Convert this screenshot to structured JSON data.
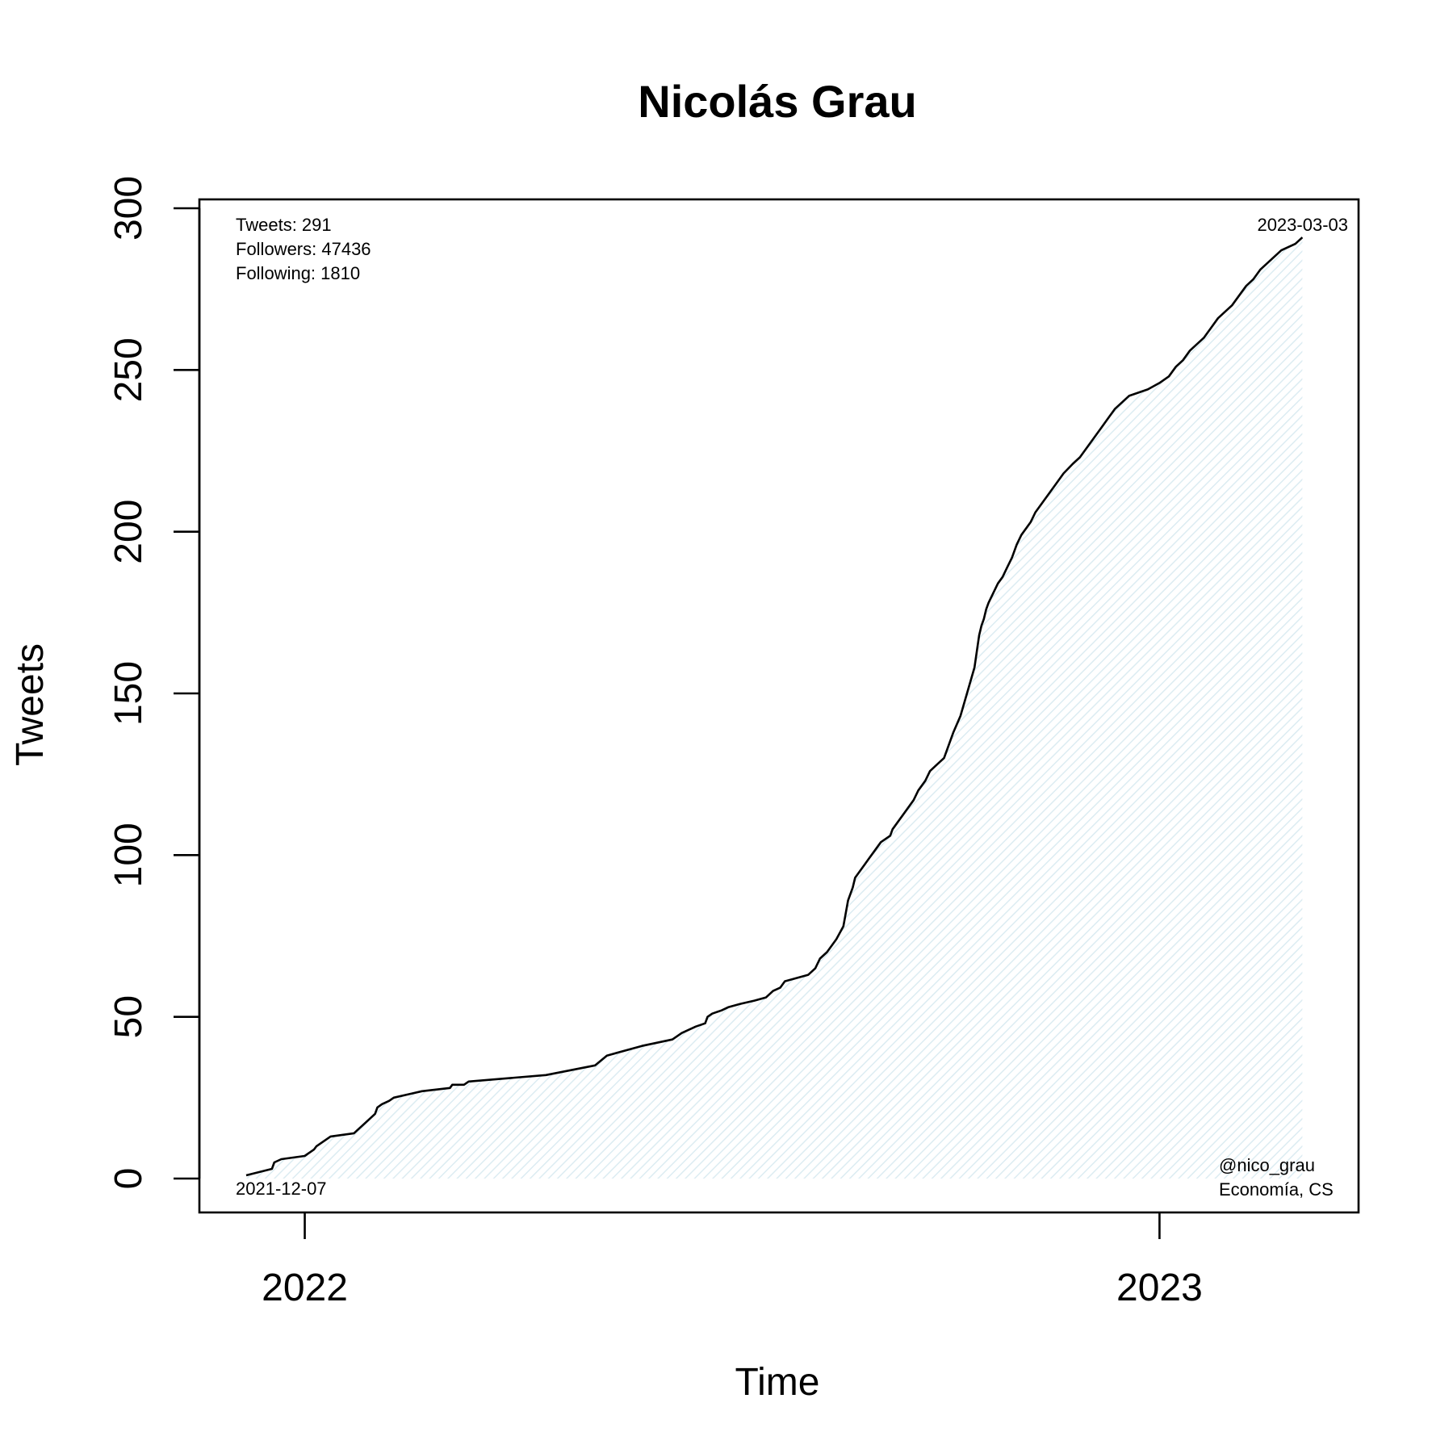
{
  "chart_data": {
    "type": "area",
    "title": "Nicolás Grau",
    "xlabel": "Time",
    "ylabel": "Tweets",
    "ylim": [
      0,
      300
    ],
    "yticks": [
      0,
      50,
      100,
      150,
      200,
      250,
      300
    ],
    "xlim": [
      "2021-11-17",
      "2023-03-27"
    ],
    "xticks": [
      {
        "date": "2022-01-01",
        "label": "2022"
      },
      {
        "date": "2023-01-01",
        "label": "2023"
      }
    ],
    "grid": false,
    "line_color": "#000000",
    "fill_color": "#e9f4f8",
    "stats": [
      "Tweets: 291",
      "Followers: 47436",
      "Following: 1810"
    ],
    "start_label": "2021-12-07",
    "end_label": "2023-03-03",
    "handle": "@nico_grau",
    "affiliation": "Economía, CS",
    "series": [
      {
        "x": [
          "2021-12-07",
          "2021-12-18",
          "2021-12-19",
          "2021-12-22",
          "2022-01-01",
          "2022-01-05",
          "2022-01-06",
          "2022-01-08",
          "2022-01-10",
          "2022-01-12",
          "2022-01-22",
          "2022-01-25",
          "2022-01-28",
          "2022-01-31",
          "2022-02-01",
          "2022-02-03",
          "2022-02-06",
          "2022-02-08",
          "2022-02-20",
          "2022-03-04",
          "2022-03-05",
          "2022-03-10",
          "2022-03-12",
          "2022-04-14",
          "2022-05-05",
          "2022-05-10",
          "2022-05-25",
          "2022-06-07",
          "2022-06-09",
          "2022-06-11",
          "2022-06-14",
          "2022-06-17",
          "2022-06-21",
          "2022-06-22",
          "2022-06-24",
          "2022-06-28",
          "2022-07-01",
          "2022-07-06",
          "2022-07-12",
          "2022-07-17",
          "2022-07-20",
          "2022-07-23",
          "2022-07-25",
          "2022-08-04",
          "2022-08-07",
          "2022-08-09",
          "2022-08-12",
          "2022-08-16",
          "2022-08-19",
          "2022-08-21",
          "2022-08-23",
          "2022-08-24",
          "2022-08-26",
          "2022-08-28",
          "2022-08-30",
          "2022-09-01",
          "2022-09-02",
          "2022-09-03",
          "2022-09-04",
          "2022-09-06",
          "2022-09-08",
          "2022-09-09",
          "2022-09-11",
          "2022-09-13",
          "2022-09-15",
          "2022-09-18",
          "2022-09-20",
          "2022-09-23",
          "2022-09-25",
          "2022-09-28",
          "2022-10-01",
          "2022-10-03",
          "2022-10-05",
          "2022-10-08",
          "2022-10-10",
          "2022-10-12",
          "2022-10-14",
          "2022-10-15",
          "2022-10-16",
          "2022-10-17",
          "2022-10-18",
          "2022-10-19",
          "2022-10-20",
          "2022-10-22",
          "2022-10-24",
          "2022-10-26",
          "2022-10-28",
          "2022-10-30",
          "2022-11-01",
          "2022-11-03",
          "2022-11-05",
          "2022-11-07",
          "2022-11-09",
          "2022-11-12",
          "2022-11-15",
          "2022-11-18",
          "2022-11-21",
          "2022-11-25",
          "2022-11-28",
          "2022-12-01",
          "2022-12-04",
          "2022-12-07",
          "2022-12-10",
          "2022-12-13",
          "2022-12-16",
          "2022-12-19",
          "2022-12-23",
          "2022-12-27",
          "2023-01-01",
          "2023-01-05",
          "2023-01-08",
          "2023-01-11",
          "2023-01-14",
          "2023-01-17",
          "2023-01-20",
          "2023-01-23",
          "2023-01-26",
          "2023-01-29",
          "2023-02-01",
          "2023-02-04",
          "2023-02-07",
          "2023-02-10",
          "2023-02-13",
          "2023-02-16",
          "2023-02-19",
          "2023-02-22",
          "2023-02-25",
          "2023-02-28",
          "2023-03-03"
        ],
        "y": [
          1,
          3,
          5,
          6,
          7,
          9,
          10,
          11,
          12,
          13,
          14,
          16,
          18,
          20,
          22,
          23,
          24,
          25,
          27,
          28,
          29,
          29,
          30,
          32,
          35,
          38,
          41,
          43,
          44,
          45,
          46,
          47,
          48,
          50,
          51,
          52,
          53,
          54,
          55,
          56,
          58,
          59,
          61,
          63,
          65,
          68,
          70,
          74,
          78,
          86,
          90,
          93,
          95,
          97,
          99,
          101,
          102,
          103,
          104,
          105,
          106,
          108,
          110,
          112,
          114,
          117,
          120,
          123,
          126,
          128,
          130,
          134,
          138,
          143,
          148,
          153,
          158,
          163,
          168,
          171,
          173,
          176,
          178,
          181,
          184,
          186,
          189,
          192,
          196,
          199,
          201,
          203,
          206,
          209,
          212,
          215,
          218,
          221,
          223,
          226,
          229,
          232,
          235,
          238,
          240,
          242,
          243,
          244,
          246,
          248,
          251,
          253,
          256,
          258,
          260,
          263,
          266,
          268,
          270,
          273,
          276,
          278,
          281,
          283,
          285,
          287,
          288,
          289,
          291
        ]
      }
    ]
  }
}
